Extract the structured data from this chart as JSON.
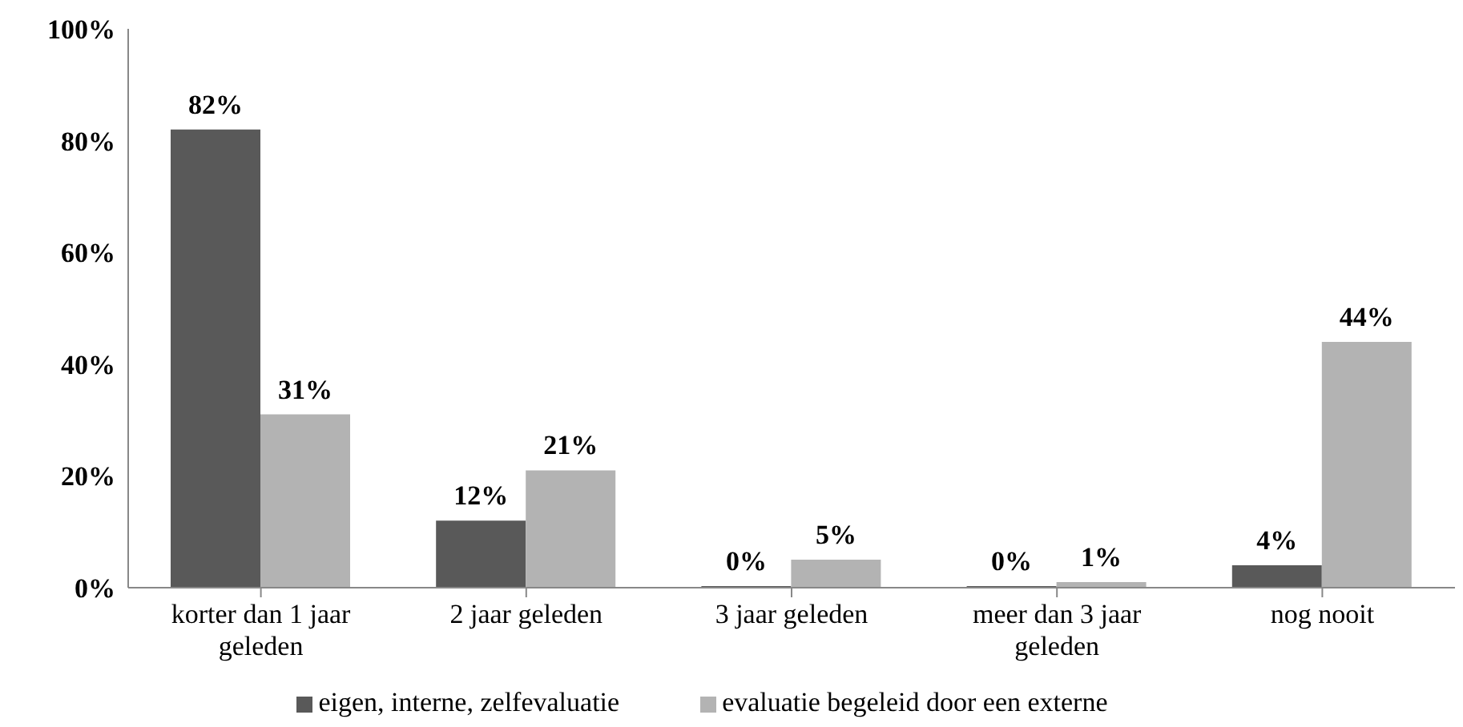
{
  "chart_data": {
    "type": "bar",
    "categories": [
      "korter dan 1 jaar geleden",
      "2 jaar geleden",
      "3 jaar geleden",
      "meer dan 3 jaar geleden",
      "nog nooit"
    ],
    "series": [
      {
        "name": "eigen, interne, zelfevaluatie",
        "color": "#595959",
        "values": [
          82,
          12,
          0,
          0,
          4
        ],
        "value_labels": [
          "82%",
          "12%",
          "0%",
          "0%",
          "4%"
        ]
      },
      {
        "name": "evaluatie begeleid door een externe",
        "color": "#b3b3b3",
        "values": [
          31,
          21,
          5,
          1,
          44
        ],
        "value_labels": [
          "31%",
          "21%",
          "5%",
          "1%",
          "44%"
        ]
      }
    ],
    "ylim": [
      0,
      100
    ],
    "yticks": [
      {
        "value": 0,
        "label": "0%"
      },
      {
        "value": 20,
        "label": "20%"
      },
      {
        "value": 40,
        "label": "40%"
      },
      {
        "value": 60,
        "label": "60%"
      },
      {
        "value": 80,
        "label": "80%"
      },
      {
        "value": 100,
        "label": "100%"
      }
    ],
    "grid": false,
    "legend": "bottom"
  }
}
